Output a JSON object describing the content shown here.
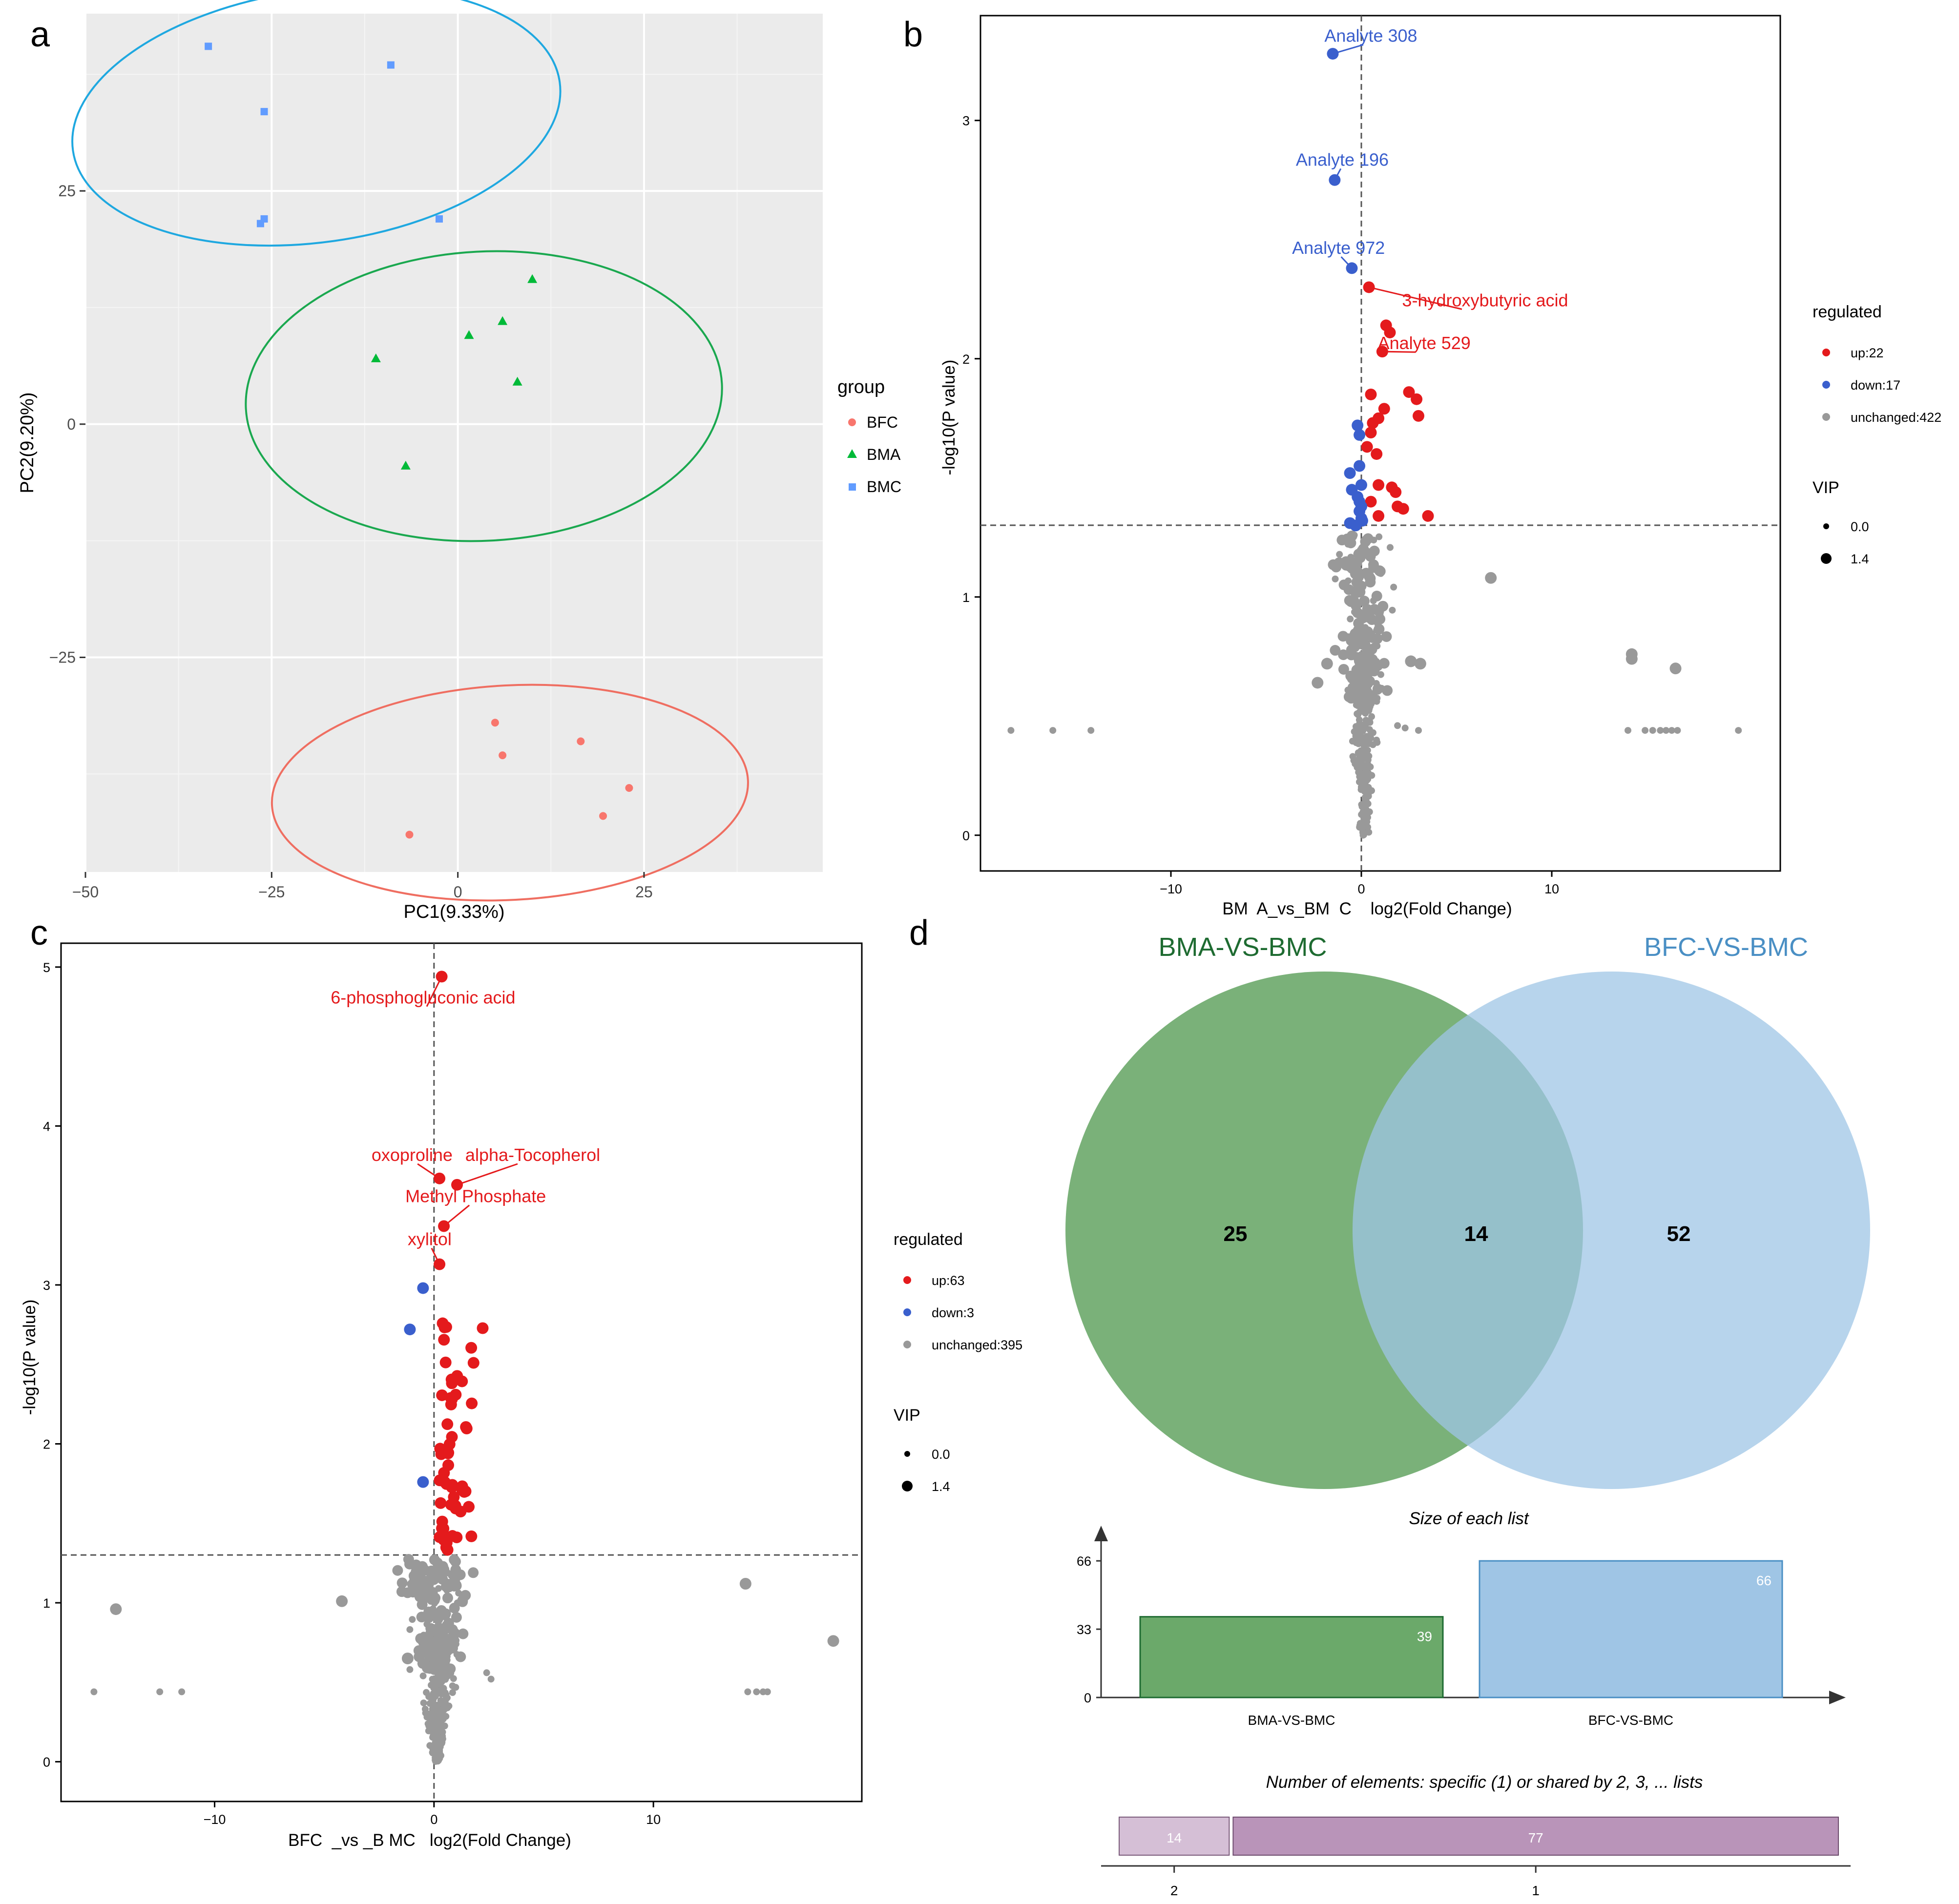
{
  "panels": {
    "a": "a",
    "b": "b",
    "c": "c",
    "d": "d"
  },
  "chart_data": [
    {
      "panel": "a",
      "type": "scatter",
      "title": "",
      "xlabel": "PC1(9.33%)",
      "ylabel": "PC2(9.20%)",
      "xlim": [
        -50,
        49
      ],
      "ylim": [
        -48,
        44
      ],
      "xticks": [
        -50,
        -25,
        0,
        25
      ],
      "yticks": [
        -25,
        0,
        25
      ],
      "grid": true,
      "background": "#ebebeb",
      "legend": {
        "title": "group",
        "position": "right",
        "entries": [
          {
            "label": "BFC",
            "color": "#f8766d",
            "shape": "circle"
          },
          {
            "label": "BMA",
            "color": "#00ba38",
            "shape": "triangle"
          },
          {
            "label": "BMC",
            "color": "#619cff",
            "shape": "square"
          }
        ]
      },
      "series": [
        {
          "name": "BFC",
          "color": "#f8766d",
          "ellipse_color": "#ef6e61",
          "ellipse": {
            "cx": 7,
            "cy": -39.5,
            "rx": 32,
            "ry": 11.5,
            "angle": 3
          },
          "points": [
            [
              5,
              -32
            ],
            [
              6,
              -35.5
            ],
            [
              16.5,
              -34
            ],
            [
              23,
              -39
            ],
            [
              19.5,
              -42
            ],
            [
              -6.5,
              -44
            ]
          ]
        },
        {
          "name": "BMA",
          "color": "#00ba38",
          "ellipse_color": "#1aa84f",
          "ellipse": {
            "cx": 3.5,
            "cy": 3,
            "rx": 32,
            "ry": 15.5,
            "angle": 3
          },
          "points": [
            [
              10,
              15.5
            ],
            [
              6,
              11
            ],
            [
              1.5,
              9.5
            ],
            [
              -11,
              7
            ],
            [
              8,
              4.5
            ],
            [
              -7,
              -4.5
            ]
          ]
        },
        {
          "name": "BMC",
          "color": "#619cff",
          "ellipse_color": "#1fa8e0",
          "ellipse": {
            "cx": -19,
            "cy": 33,
            "rx": 33,
            "ry": 13.5,
            "angle": 8
          },
          "points": [
            [
              -33.5,
              40.5
            ],
            [
              -9,
              38.5
            ],
            [
              -26,
              33.5
            ],
            [
              -26,
              22
            ],
            [
              -26.5,
              21.5
            ],
            [
              -2.5,
              22
            ]
          ]
        }
      ]
    },
    {
      "panel": "b",
      "type": "scatter",
      "title": "",
      "xlabel": "BM  A_vs_BM  C    log2(Fold Change)",
      "ylabel": "-log10(P value)",
      "xlim": [
        -20,
        22
      ],
      "ylim": [
        -0.15,
        3.44
      ],
      "xticks": [
        -10,
        0,
        10
      ],
      "yticks": [
        0,
        1,
        2,
        3
      ],
      "vline": 0,
      "hline": 1.301,
      "legend": {
        "title": "regulated",
        "position": "right",
        "entries": [
          {
            "label": "up:22",
            "color": "#e41a1c"
          },
          {
            "label": "down:17",
            "color": "#3a5fcd"
          },
          {
            "label": "unchanged:422",
            "color": "#999999"
          }
        ],
        "size_title": "VIP",
        "size_entries": [
          "0.0",
          "1.4"
        ]
      },
      "up": [
        [
          0.4,
          2.3
        ],
        [
          1.3,
          2.14
        ],
        [
          1.5,
          2.11
        ],
        [
          1.1,
          2.03
        ],
        [
          2.5,
          1.86
        ],
        [
          2.9,
          1.83
        ],
        [
          3.0,
          1.76
        ],
        [
          0.5,
          1.85
        ],
        [
          1.2,
          1.79
        ],
        [
          0.9,
          1.75
        ],
        [
          0.6,
          1.73
        ],
        [
          0.5,
          1.69
        ],
        [
          0.3,
          1.63
        ],
        [
          0.8,
          1.6
        ],
        [
          0.9,
          1.47
        ],
        [
          1.6,
          1.46
        ],
        [
          1.8,
          1.44
        ],
        [
          0.5,
          1.4
        ],
        [
          1.9,
          1.38
        ],
        [
          2.2,
          1.37
        ],
        [
          0.9,
          1.34
        ],
        [
          3.5,
          1.34
        ]
      ],
      "down": [
        [
          -1.5,
          3.28
        ],
        [
          -1.4,
          2.75
        ],
        [
          -0.5,
          2.38
        ],
        [
          -0.2,
          1.72
        ],
        [
          -0.1,
          1.68
        ],
        [
          -0.1,
          1.55
        ],
        [
          -0.6,
          1.52
        ],
        [
          -0.5,
          1.45
        ],
        [
          0,
          1.47
        ],
        [
          -0.2,
          1.42
        ],
        [
          -0.1,
          1.4
        ],
        [
          0,
          1.38
        ],
        [
          -0.1,
          1.36
        ],
        [
          0,
          1.33
        ],
        [
          -0.6,
          1.31
        ],
        [
          -0.3,
          1.3
        ],
        [
          0.05,
          1.32
        ]
      ],
      "labels": [
        {
          "text": "Analyte 308",
          "color": "#3a5fcd",
          "x": 0.5,
          "y": 3.33,
          "px": -1.5,
          "py": 3.28
        },
        {
          "text": "Analyte 196",
          "color": "#3a5fcd",
          "x": -1.0,
          "y": 2.81,
          "px": -1.4,
          "py": 2.75
        },
        {
          "text": "Analyte 972",
          "color": "#3a5fcd",
          "x": -1.2,
          "y": 2.44,
          "px": -0.5,
          "py": 2.38
        },
        {
          "text": "3-hydroxybutyric acid",
          "color": "#e41a1c",
          "x": 6.5,
          "y": 2.22,
          "px": 0.4,
          "py": 2.3
        },
        {
          "text": "Analyte 529",
          "color": "#e41a1c",
          "x": 3.3,
          "y": 2.04,
          "px": 1.1,
          "py": 2.03
        }
      ],
      "unchanged_outliers": [
        [
          6.8,
          1.08
        ],
        [
          14.2,
          0.76
        ],
        [
          14.2,
          0.74
        ],
        [
          16.5,
          0.7
        ],
        [
          2.6,
          0.73
        ],
        [
          3.1,
          0.72
        ],
        [
          -18.4,
          0.44
        ],
        [
          -16.2,
          0.44
        ],
        [
          -14.2,
          0.44
        ],
        [
          14.0,
          0.44
        ],
        [
          14.9,
          0.44
        ],
        [
          15.3,
          0.44
        ],
        [
          15.7,
          0.44
        ],
        [
          16.0,
          0.44
        ],
        [
          16.3,
          0.44
        ],
        [
          16.6,
          0.44
        ],
        [
          19.8,
          0.44
        ],
        [
          1.9,
          0.46
        ],
        [
          2.3,
          0.45
        ],
        [
          3.0,
          0.44
        ],
        [
          -1.8,
          0.72
        ],
        [
          -2.3,
          0.64
        ]
      ],
      "unchanged_seed": 11,
      "unchanged_count": 400
    },
    {
      "panel": "c",
      "type": "scatter",
      "title": "",
      "xlabel": "BFC  _vs _B MC   log2(Fold Change)",
      "ylabel": "-log10(P value)",
      "xlim": [
        -17,
        19.5
      ],
      "ylim": [
        -0.25,
        5.15
      ],
      "xticks": [
        -10,
        0,
        10
      ],
      "yticks": [
        0,
        1,
        2,
        3,
        4,
        5
      ],
      "vline": 0,
      "hline": 1.301,
      "legend": {
        "title": "regulated",
        "position": "right",
        "entries": [
          {
            "label": "up:63",
            "color": "#e41a1c"
          },
          {
            "label": "down:3",
            "color": "#3a5fcd"
          },
          {
            "label": "unchanged:395",
            "color": "#999999"
          }
        ],
        "size_title": "VIP",
        "size_entries": [
          "0.0",
          "1.4"
        ]
      },
      "down": [
        [
          -0.5,
          2.98
        ],
        [
          -1.1,
          2.72
        ],
        [
          -0.5,
          1.76
        ]
      ],
      "labels": [
        {
          "text": "6-phosphogluconic acid",
          "color": "#e41a1c",
          "x": -0.5,
          "y": 4.77,
          "px": 0.35,
          "py": 4.94
        },
        {
          "text": "oxoproline",
          "color": "#e41a1c",
          "x": -1.0,
          "y": 3.78,
          "px": 0.25,
          "py": 3.67
        },
        {
          "text": "alpha-Tocopherol",
          "color": "#e41a1c",
          "x": 4.5,
          "y": 3.78,
          "px": 1.05,
          "py": 3.63
        },
        {
          "text": "Methyl Phosphate",
          "color": "#e41a1c",
          "x": 1.9,
          "y": 3.52,
          "px": 0.45,
          "py": 3.37
        },
        {
          "text": "xylitol",
          "color": "#e41a1c",
          "x": -0.2,
          "y": 3.25,
          "px": 0.25,
          "py": 3.13
        }
      ],
      "up_seed": 7,
      "up_count": 63,
      "unchanged_outliers": [
        [
          -14.5,
          0.96
        ],
        [
          -4.2,
          1.01
        ],
        [
          14.2,
          1.12
        ],
        [
          18.2,
          0.76
        ],
        [
          -15.5,
          0.44
        ],
        [
          -12.5,
          0.44
        ],
        [
          -11.5,
          0.44
        ],
        [
          14.3,
          0.44
        ],
        [
          14.7,
          0.44
        ],
        [
          15.0,
          0.44
        ],
        [
          15.2,
          0.44
        ],
        [
          2.4,
          0.56
        ],
        [
          2.6,
          0.52
        ],
        [
          -1.2,
          0.65
        ],
        [
          -1.1,
          0.58
        ]
      ],
      "unchanged_seed": 5,
      "unchanged_count": 380
    },
    {
      "panel": "d",
      "type": "venn",
      "sets": [
        {
          "name": "BMA-VS-BMC",
          "color": "#1e6b31",
          "fill": "#6ba96a",
          "size": 39
        },
        {
          "name": "BFC-VS-BMC",
          "color": "#4a8fc4",
          "fill": "#9fc5e5",
          "size": 66
        }
      ],
      "regions": {
        "only_a": 25,
        "intersection": 14,
        "only_b": 52
      },
      "size_chart": {
        "title": "Size of each list",
        "categories": [
          "BMA-VS-BMC",
          "BFC-VS-BMC"
        ],
        "values": [
          39,
          66
        ],
        "yticks": [
          0,
          33,
          66
        ],
        "ylim": [
          0,
          75
        ]
      },
      "shared_chart": {
        "title": "Number of elements: specific (1) or shared by 2, 3, ... lists",
        "categories": [
          "2",
          "1"
        ],
        "values": [
          14,
          77
        ]
      }
    }
  ]
}
